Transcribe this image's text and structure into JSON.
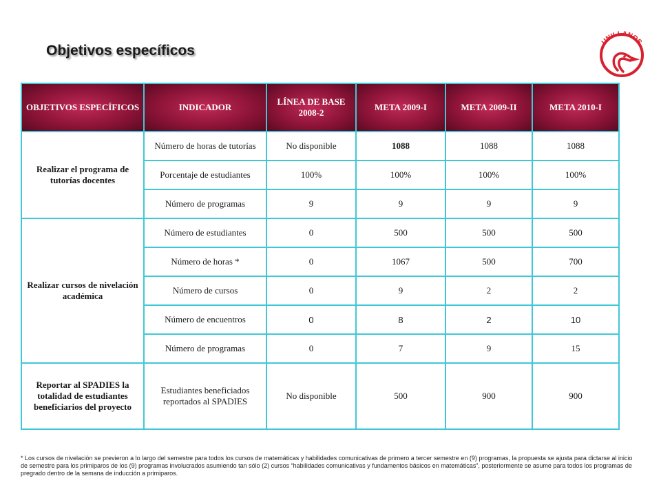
{
  "page": {
    "title": "Objetivos específicos",
    "logo_text": "UNILLANOS",
    "brand_color": "#d8202e",
    "header_color": "#8e1438",
    "border_color": "#3ec8d6"
  },
  "table": {
    "headers": [
      "OBJETIVOS ESPECÍFICOS",
      "INDICADOR",
      "LÍNEA DE BASE 2008-2",
      "META 2009-I",
      "META 2009-II",
      "META 2010-I"
    ],
    "groups": [
      {
        "objective": "Realizar el programa de tutorías docentes",
        "rows": [
          {
            "indicator": "Número de horas de tutorías",
            "base": "No disponible",
            "m1": "1088",
            "m2": "1088",
            "m3": "1088"
          },
          {
            "indicator": "Porcentaje de estudiantes",
            "base": "100%",
            "m1": "100%",
            "m2": "100%",
            "m3": "100%"
          },
          {
            "indicator": "Número de programas",
            "base": "9",
            "m1": "9",
            "m2": "9",
            "m3": "9"
          }
        ]
      },
      {
        "objective": "Realizar cursos de nivelación académica",
        "rows": [
          {
            "indicator": "Número de estudiantes",
            "base": "0",
            "m1": "500",
            "m2": "500",
            "m3": "500"
          },
          {
            "indicator": "Número de horas *",
            "base": "0",
            "m1": "1067",
            "m2": "500",
            "m3": "700"
          },
          {
            "indicator": "Número de cursos",
            "base": "0",
            "m1": "9",
            "m2": "2",
            "m3": "2"
          },
          {
            "indicator": "Número de encuentros",
            "base": "0",
            "m1": "8",
            "m2": "2",
            "m3": "10"
          },
          {
            "indicator": "Número de programas",
            "base": "0",
            "m1": "7",
            "m2": "9",
            "m3": "15"
          }
        ]
      },
      {
        "objective": "Reportar al SPADIES la totalidad de estudiantes beneficiarios del proyecto",
        "rows": [
          {
            "indicator": "Estudiantes beneficiados reportados al SPADIES",
            "base": "No disponible",
            "m1": "500",
            "m2": "900",
            "m3": "900"
          }
        ]
      }
    ]
  },
  "footnote": "* Los cursos de nivelación se previeron a lo largo del semestre para todos los cursos de matemáticas y habilidades comunicativas de primero a tercer semestre en (9) programas, la propuesta se ajusta para dictarse al inicio de semestre para los primiparos de los (9) programas involucrados asumiendo tan sólo (2) cursos “habilidades comunicativas y fundamentos básicos en matemáticas”, posteriormente se asume para todos los programas de pregrado dentro de la semana de inducción a primiparos."
}
